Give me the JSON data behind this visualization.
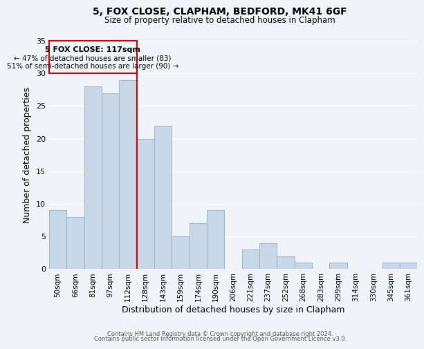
{
  "title": "5, FOX CLOSE, CLAPHAM, BEDFORD, MK41 6GF",
  "subtitle": "Size of property relative to detached houses in Clapham",
  "xlabel": "Distribution of detached houses by size in Clapham",
  "ylabel": "Number of detached properties",
  "bar_labels": [
    "50sqm",
    "66sqm",
    "81sqm",
    "97sqm",
    "112sqm",
    "128sqm",
    "143sqm",
    "159sqm",
    "174sqm",
    "190sqm",
    "206sqm",
    "221sqm",
    "237sqm",
    "252sqm",
    "268sqm",
    "283sqm",
    "299sqm",
    "314sqm",
    "330sqm",
    "345sqm",
    "361sqm"
  ],
  "bar_values": [
    9,
    8,
    28,
    27,
    29,
    20,
    22,
    5,
    7,
    9,
    0,
    3,
    4,
    2,
    1,
    0,
    1,
    0,
    0,
    1,
    1
  ],
  "bar_color": "#c8d8e8",
  "bar_edgecolor": "#a0b8cc",
  "vline_x_index": 4,
  "vline_color": "#cc0000",
  "ylim": [
    0,
    35
  ],
  "yticks": [
    0,
    5,
    10,
    15,
    20,
    25,
    30,
    35
  ],
  "annotation_title": "5 FOX CLOSE: 117sqm",
  "annotation_line1": "← 47% of detached houses are smaller (83)",
  "annotation_line2": "51% of semi-detached houses are larger (90) →",
  "annotation_box_edgecolor": "#cc0000",
  "footer_line1": "Contains HM Land Registry data © Crown copyright and database right 2024.",
  "footer_line2": "Contains public sector information licensed under the Open Government Licence v3.0.",
  "background_color": "#f0f4f8",
  "grid_color": "#ffffff"
}
